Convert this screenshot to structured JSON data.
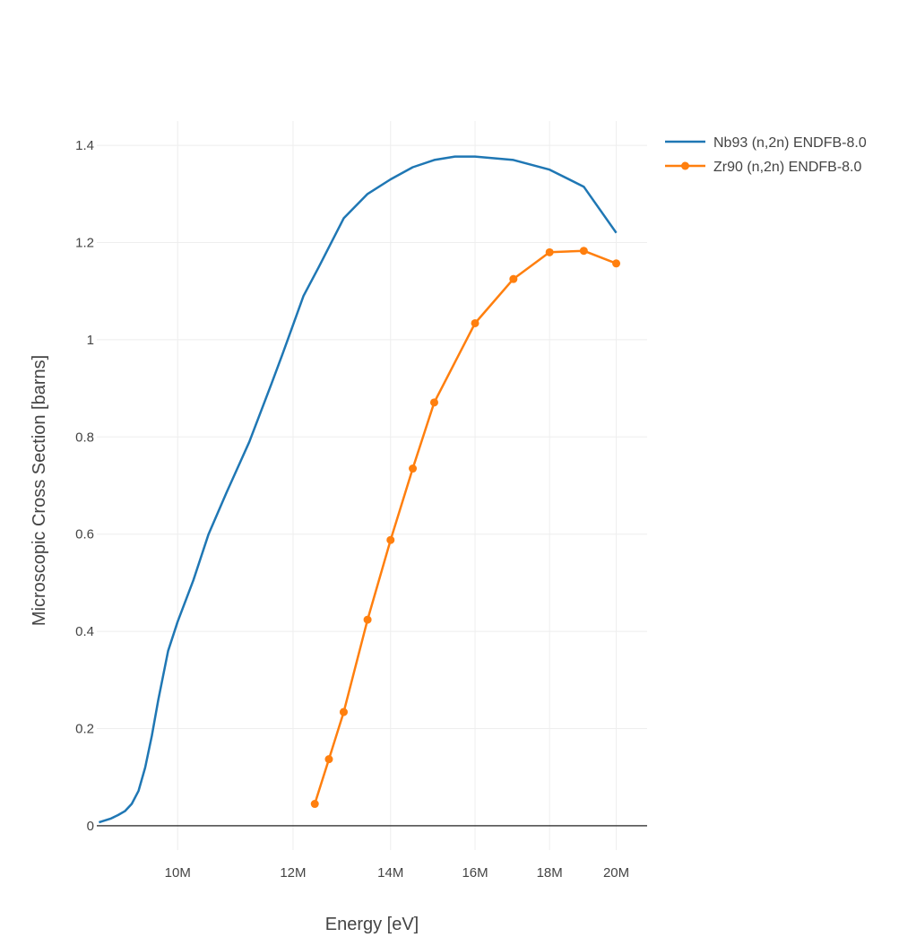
{
  "chart_data": {
    "type": "line",
    "title": "",
    "xlabel": "Energy [eV]",
    "ylabel": "Microscopic Cross Section [barns]",
    "x_scale": "log",
    "xlim": [
      8800000,
      21000000
    ],
    "ylim": [
      -0.05,
      1.45
    ],
    "grid": true,
    "legend_position": "top-right outside",
    "x_ticks": [
      {
        "value": 10000000,
        "label": "10M"
      },
      {
        "value": 12000000,
        "label": "12M"
      },
      {
        "value": 14000000,
        "label": "14M"
      },
      {
        "value": 16000000,
        "label": "16M"
      },
      {
        "value": 18000000,
        "label": "18M"
      },
      {
        "value": 20000000,
        "label": "20M"
      }
    ],
    "y_ticks": [
      {
        "value": 0,
        "label": "0"
      },
      {
        "value": 0.2,
        "label": "0.2"
      },
      {
        "value": 0.4,
        "label": "0.4"
      },
      {
        "value": 0.6,
        "label": "0.6"
      },
      {
        "value": 0.8,
        "label": "0.8"
      },
      {
        "value": 1.0,
        "label": "1"
      },
      {
        "value": 1.2,
        "label": "1.2"
      },
      {
        "value": 1.4,
        "label": "1.4"
      }
    ],
    "series": [
      {
        "name": "Nb93 (n,2n) ENDFB-8.0",
        "color": "#1f77b4",
        "markers": false,
        "x": [
          8830000,
          9000000,
          9100000,
          9200000,
          9300000,
          9400000,
          9500000,
          9600000,
          9700000,
          9850000,
          10000000,
          10250000,
          10500000,
          10800000,
          11200000,
          11600000,
          11800000,
          12000000,
          12200000,
          12500000,
          13000000,
          13500000,
          14000000,
          14500000,
          15000000,
          15500000,
          16000000,
          17000000,
          18000000,
          19000000,
          20000000
        ],
        "y": [
          0.007,
          0.015,
          0.022,
          0.03,
          0.045,
          0.072,
          0.12,
          0.185,
          0.26,
          0.36,
          0.42,
          0.505,
          0.6,
          0.685,
          0.79,
          0.91,
          0.97,
          1.03,
          1.09,
          1.15,
          1.25,
          1.3,
          1.33,
          1.355,
          1.37,
          1.377,
          1.377,
          1.37,
          1.35,
          1.315,
          1.22
        ]
      },
      {
        "name": "Zr90 (n,2n) ENDFB-8.0",
        "color": "#ff7f0e",
        "markers": true,
        "x": [
          12420000,
          12700000,
          13000000,
          13500000,
          14000000,
          14500000,
          15000000,
          16000000,
          17000000,
          18000000,
          19000000,
          20000000
        ],
        "y": [
          0.045,
          0.137,
          0.234,
          0.424,
          0.588,
          0.735,
          0.871,
          1.034,
          1.125,
          1.18,
          1.183,
          1.157
        ]
      }
    ]
  }
}
